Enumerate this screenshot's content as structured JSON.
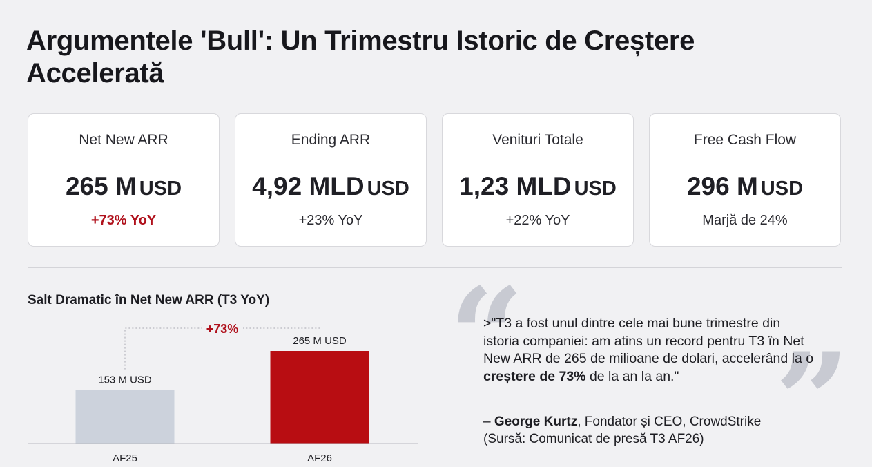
{
  "title": "Argumentele 'Bull': Un Trimestru Istoric de Creștere Accelerată",
  "cards": [
    {
      "label": "Net New ARR",
      "number": "265 M",
      "unit": "USD",
      "sub": "+73% YoY",
      "highlight": true
    },
    {
      "label": "Ending ARR",
      "number": "4,92 MLD",
      "unit": "USD",
      "sub": "+23% YoY",
      "highlight": false
    },
    {
      "label": "Venituri Totale",
      "number": "1,23 MLD",
      "unit": "USD",
      "sub": "+22% YoY",
      "highlight": false
    },
    {
      "label": "Free Cash Flow",
      "number": "296 M",
      "unit": "USD",
      "sub": "Marjă de 24%",
      "highlight": false
    }
  ],
  "chart_title": "Salt Dramatic în Net New ARR (T3 YoY)",
  "chart_data": {
    "type": "bar",
    "title": "Salt Dramatic în Net New ARR (T3 YoY)",
    "categories": [
      "AF25",
      "AF26"
    ],
    "values": [
      153,
      265
    ],
    "value_labels": [
      "153 M USD",
      "265 M USD"
    ],
    "bar_colors": [
      "#ccd2dc",
      "#b80d12"
    ],
    "growth_label": "+73%",
    "ylim": [
      0,
      285
    ]
  },
  "quote": {
    "prefix": ">\"T3 a fost unul dintre cele mai bune trimestre din istoria companiei: am atins un record pentru T3 în Net New ARR de 265 de milioane de dolari, accelerând la o ",
    "bold": "creștere de 73%",
    "suffix": " de la an la an.\"",
    "dash": "– ",
    "author": "George Kurtz",
    "role": ", Fondator și CEO, CrowdStrike",
    "source": "(Sursă: Comunicat de presă T3 AF26)"
  },
  "colors": {
    "accent": "#b0111c",
    "bar_prev": "#ccd2dc",
    "bar_curr": "#b80d12",
    "background": "#f1f1f3"
  }
}
